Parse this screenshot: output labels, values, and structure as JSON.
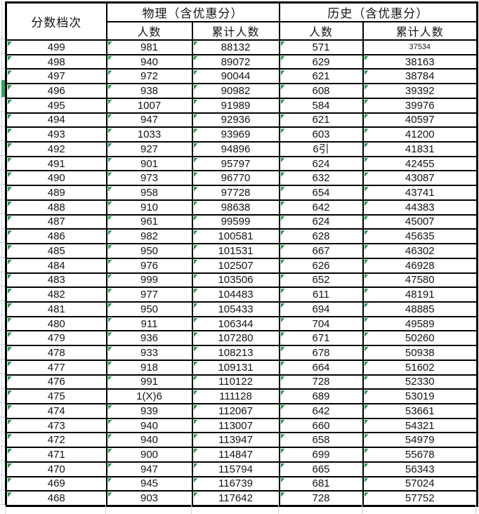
{
  "colors": {
    "border": "#000000",
    "triangle_green": "#1f9d4d",
    "row_marker_green": "#2aa968",
    "gridline": "#c9d1e3",
    "text": "#141414"
  },
  "header": {
    "score_band": "分数档次",
    "physics_band": "物理（含优惠分）",
    "history_band": "历史（含优惠分）",
    "count_label": "人数",
    "cumulative_label": "累计人数"
  },
  "rows": [
    [
      "499",
      "981",
      "88132",
      "571",
      "37534"
    ],
    [
      "498",
      "940",
      "89072",
      "629",
      "38163"
    ],
    [
      "497",
      "972",
      "90044",
      "621",
      "38784"
    ],
    [
      "496",
      "938",
      "90982",
      "608",
      "39392"
    ],
    [
      "495",
      "1007",
      "91989",
      "584",
      "39976"
    ],
    [
      "494",
      "947",
      "92936",
      "621",
      "40597"
    ],
    [
      "493",
      "1033",
      "93969",
      "603",
      "41200"
    ],
    [
      "492",
      "927",
      "94896",
      "6引",
      "41831"
    ],
    [
      "491",
      "901",
      "95797",
      "624",
      "42455"
    ],
    [
      "490",
      "973",
      "96770",
      "632",
      "43087"
    ],
    [
      "489",
      "958",
      "97728",
      "654",
      "43741"
    ],
    [
      "488",
      "910",
      "98638",
      "642",
      "44383"
    ],
    [
      "487",
      "961",
      "99599",
      "624",
      "45007"
    ],
    [
      "486",
      "982",
      "100581",
      "628",
      "45635"
    ],
    [
      "485",
      "950",
      "101531",
      "667",
      "46302"
    ],
    [
      "484",
      "976",
      "102507",
      "626",
      "46928"
    ],
    [
      "483",
      "999",
      "103506",
      "652",
      "47580"
    ],
    [
      "482",
      "977",
      "104483",
      "611",
      "48191"
    ],
    [
      "481",
      "950",
      "105433",
      "694",
      "48885"
    ],
    [
      "480",
      "911",
      "106344",
      "704",
      "49589"
    ],
    [
      "479",
      "936",
      "107280",
      "671",
      "50260"
    ],
    [
      "478",
      "933",
      "108213",
      "678",
      "50938"
    ],
    [
      "477",
      "918",
      "109131",
      "664",
      "51602"
    ],
    [
      "476",
      "991",
      "110122",
      "728",
      "52330"
    ],
    [
      "475",
      "1(X)6",
      "111128",
      "689",
      "53019"
    ],
    [
      "474",
      "939",
      "112067",
      "642",
      "53661"
    ],
    [
      "473",
      "940",
      "113007",
      "660",
      "54321"
    ],
    [
      "472",
      "940",
      "113947",
      "658",
      "54979"
    ],
    [
      "471",
      "900",
      "114847",
      "699",
      "55678"
    ],
    [
      "470",
      "947",
      "115794",
      "665",
      "56343"
    ],
    [
      "469",
      "945",
      "116739",
      "681",
      "57024"
    ],
    [
      "468",
      "903",
      "117642",
      "728",
      "57752"
    ]
  ],
  "special": {
    "small_font_cells": [
      [
        0,
        4
      ]
    ],
    "no_triangle_cells": [
      [
        0,
        4
      ],
      [
        7,
        3
      ],
      [
        24,
        1
      ]
    ]
  }
}
